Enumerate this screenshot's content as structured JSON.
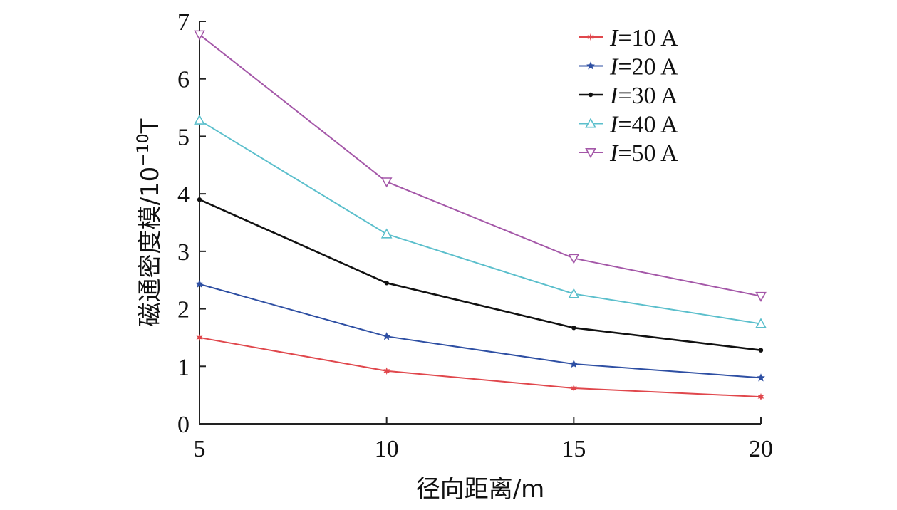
{
  "chart_data": {
    "type": "line",
    "title": "",
    "xlabel": "径向距离/m",
    "ylabel": "磁通密度模/10",
    "ylabel_exponent": "−10",
    "ylabel_unit": "T",
    "x": [
      5,
      10,
      15,
      20
    ],
    "xlim": [
      5,
      20
    ],
    "ylim": [
      0,
      7
    ],
    "xticks": [
      "5",
      "10",
      "15",
      "20"
    ],
    "yticks": [
      "0",
      "1",
      "2",
      "3",
      "4",
      "5",
      "6",
      "7"
    ],
    "grid": false,
    "legend_position": "top-right",
    "series": [
      {
        "name": "=10 A",
        "name_prefix": "I",
        "values": [
          1.5,
          0.92,
          0.62,
          0.47
        ],
        "color": "#e0474c",
        "marker": "star6"
      },
      {
        "name": "=20 A",
        "name_prefix": "I",
        "values": [
          2.43,
          1.52,
          1.04,
          0.8
        ],
        "color": "#2e4fa3",
        "marker": "star5"
      },
      {
        "name": "=30 A",
        "name_prefix": "I",
        "values": [
          3.9,
          2.45,
          1.67,
          1.28
        ],
        "color": "#111111",
        "marker": "dot"
      },
      {
        "name": "=40 A",
        "name_prefix": "I",
        "values": [
          5.28,
          3.3,
          2.26,
          1.74
        ],
        "color": "#5bbfcc",
        "marker": "triangle-up"
      },
      {
        "name": "=50 A",
        "name_prefix": "I",
        "values": [
          6.77,
          4.21,
          2.88,
          2.22
        ],
        "color": "#a457a8",
        "marker": "triangle-down"
      }
    ]
  }
}
